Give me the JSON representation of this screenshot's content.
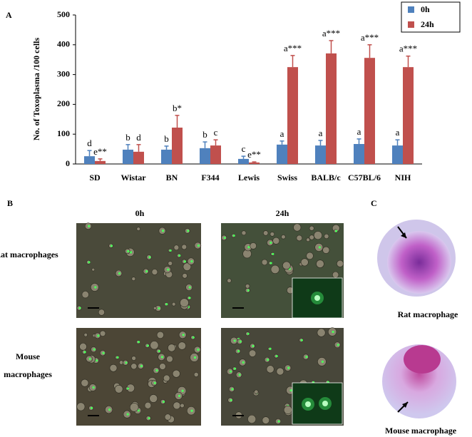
{
  "chart_data": {
    "type": "bar",
    "panel_label": "A",
    "y_label": "No. of Toxoplasma /100 cells",
    "categories": [
      "SD",
      "Wistar",
      "BN",
      "F344",
      "Lewis",
      "Swiss",
      "BALB/c",
      "C57BL/6",
      "NIH"
    ],
    "series": [
      {
        "name": "0h",
        "color": "#4f81bd",
        "values": [
          26,
          48,
          48,
          53,
          17,
          65,
          62,
          67,
          62
        ],
        "errors": [
          19,
          17,
          12,
          21,
          9,
          12,
          17,
          17,
          19
        ],
        "annotations": [
          "d",
          "b",
          "b",
          "b",
          "c",
          "a",
          "a",
          "a",
          "a"
        ]
      },
      {
        "name": "24h",
        "color": "#c0504d",
        "values": [
          10,
          41,
          122,
          62,
          5,
          325,
          371,
          356,
          325
        ],
        "errors": [
          7,
          24,
          41,
          19,
          2,
          39,
          43,
          44,
          37
        ],
        "annotations": [
          "e**",
          "d",
          "b*",
          "c",
          "e**",
          "a***",
          "a***",
          "a***",
          "a***"
        ]
      }
    ],
    "ylim": [
      0,
      500
    ],
    "yticks": [
      0,
      100,
      200,
      300,
      400,
      500
    ],
    "legend": "upper right"
  },
  "panel_b": {
    "label": "B",
    "columns": [
      "0h",
      "24h"
    ],
    "rows": [
      "Rat macrophages",
      "Mouse macrophages"
    ]
  },
  "panel_c": {
    "label": "C",
    "captions": [
      "Rat macrophage",
      "Mouse macrophage"
    ]
  }
}
